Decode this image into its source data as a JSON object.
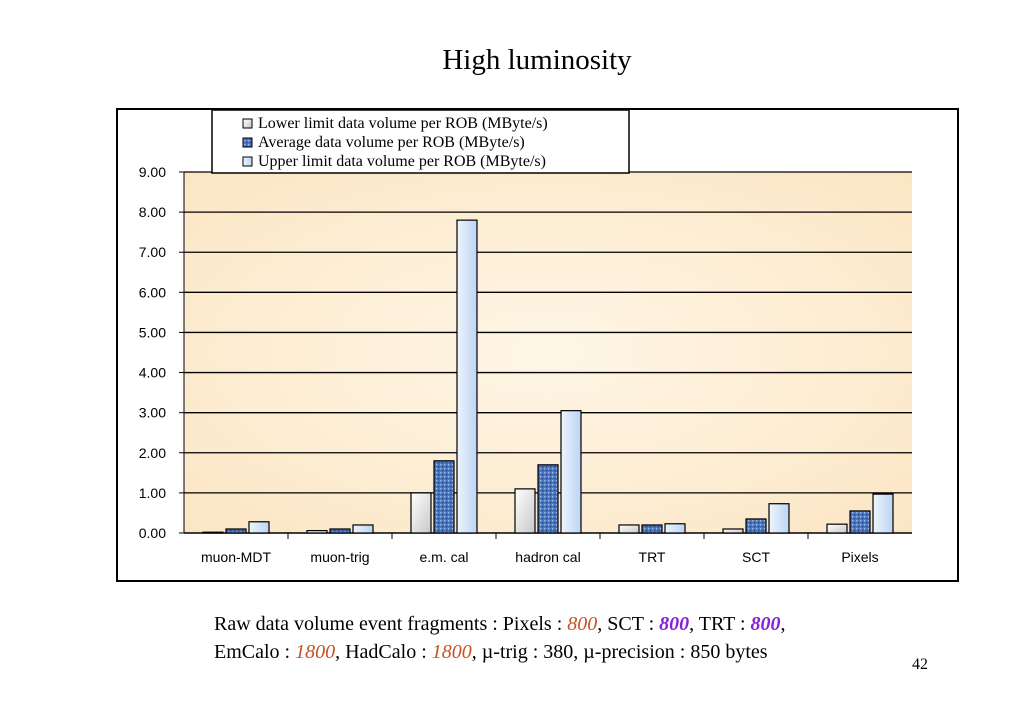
{
  "slide": {
    "title": "High luminosity",
    "page_number": "42"
  },
  "caption": {
    "line1_prefix": "Raw data volume event fragments : Pixels : ",
    "pixels_value": "800",
    "sct_label": ", SCT : ",
    "sct_value": "800",
    "trt_label": ", TRT : ",
    "trt_value": "800",
    "trailing_comma": ",",
    "emcalo_label": "EmCalo : ",
    "emcalo_value": "1800",
    "hadcalo_label": ", HadCalo : ",
    "hadcalo_value": "1800",
    "rest": ", µ-trig : 380, µ-precision : 850 bytes"
  },
  "colors": {
    "plot_background": "#fdeed3",
    "lower_fill": "#f2f2f2",
    "average_fill": "#4a78c4",
    "upper_fill": "#d4e4f8",
    "orange_value": "#c8501e",
    "purple_value": "#8a1fd8"
  },
  "chart_data": {
    "type": "bar",
    "categories": [
      "muon-MDT",
      "muon-trig",
      "e.m. cal",
      "hadron cal",
      "TRT",
      "SCT",
      "Pixels"
    ],
    "series": [
      {
        "name": "Lower limit data volume per ROB (MByte/s)",
        "values": [
          0.02,
          0.06,
          1.0,
          1.1,
          0.2,
          0.1,
          0.22
        ]
      },
      {
        "name": "Average data volume per ROB (MByte/s)",
        "values": [
          0.1,
          0.1,
          1.8,
          1.7,
          0.2,
          0.35,
          0.55
        ]
      },
      {
        "name": "Upper limit data volume per ROB (MByte/s)",
        "values": [
          0.28,
          0.2,
          7.8,
          3.05,
          0.23,
          0.73,
          0.97
        ]
      }
    ],
    "yticks": [
      "0.00",
      "1.00",
      "2.00",
      "3.00",
      "4.00",
      "5.00",
      "6.00",
      "7.00",
      "8.00",
      "9.00"
    ],
    "ylim": [
      0,
      9
    ],
    "grid": true,
    "legend_position": "top-center"
  }
}
